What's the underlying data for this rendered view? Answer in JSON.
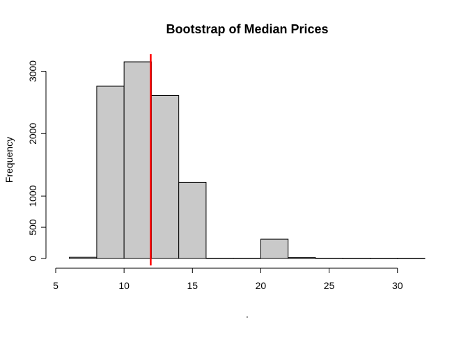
{
  "chart_data": {
    "type": "bar",
    "title": "Bootstrap of Median Prices",
    "xlabel": ".",
    "ylabel": "Frequency",
    "bin_edges": [
      6,
      8,
      10,
      12,
      14,
      16,
      18,
      20,
      22,
      24,
      26,
      28,
      30,
      32
    ],
    "values": [
      20,
      2760,
      3150,
      2610,
      1220,
      5,
      5,
      310,
      15,
      5,
      3,
      2,
      2
    ],
    "xlim": [
      5,
      32
    ],
    "ylim": [
      0,
      3150
    ],
    "x_ticks": [
      5,
      10,
      15,
      20,
      25,
      30
    ],
    "x_tick_labels": [
      "5",
      "10",
      "15",
      "20",
      "25",
      "30"
    ],
    "y_ticks": [
      0,
      500,
      1000,
      2000,
      3000
    ],
    "y_tick_labels": [
      "0",
      "500",
      "1000",
      "2000",
      "3000"
    ],
    "bar_color": "#c9c9c9",
    "bar_edge_color": "#000000",
    "reference_line": {
      "x": 11.95,
      "color": "#ff0000"
    },
    "grid": false,
    "legend": "none"
  }
}
